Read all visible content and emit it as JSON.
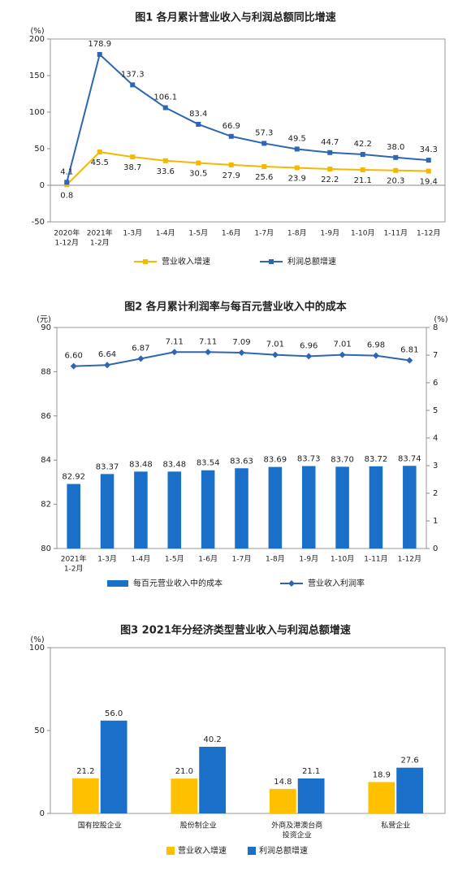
{
  "chart_data": [
    {
      "type": "line",
      "title": "图1 各月累计营业收入与利润总额同比增速",
      "ylabel": "(%)",
      "categories": [
        [
          "2020年",
          "1-12月"
        ],
        [
          "2021年",
          "1-2月"
        ],
        "1-3月",
        "1-4月",
        "1-5月",
        "1-6月",
        "1-7月",
        "1-8月",
        "1-9月",
        "1-10月",
        "1-11月",
        "1-12月"
      ],
      "ylim": [
        -50,
        200
      ],
      "yticks": [
        -50,
        0,
        50,
        100,
        150,
        200
      ],
      "series": [
        {
          "name": "营业收入增速",
          "color": "#f5b800",
          "marker": "square",
          "values": [
            0.8,
            45.5,
            38.7,
            33.6,
            30.5,
            27.9,
            25.6,
            23.9,
            22.2,
            21.1,
            20.3,
            19.4
          ],
          "value_labels": [
            "0.8",
            "45.5",
            "38.7",
            "33.6",
            "30.5",
            "27.9",
            "25.6",
            "23.9",
            "22.2",
            "21.1",
            "20.3",
            "19.4"
          ]
        },
        {
          "name": "利润总额增速",
          "color": "#2f66b3",
          "marker": "square",
          "values": [
            4.1,
            178.9,
            137.3,
            106.1,
            83.4,
            66.9,
            57.3,
            49.5,
            44.7,
            42.2,
            38.0,
            34.3
          ],
          "value_labels": [
            "4.1",
            "178.9",
            "137.3",
            "106.1",
            "83.4",
            "66.9",
            "57.3",
            "49.5",
            "44.7",
            "42.2",
            "38.0",
            "34.3"
          ]
        }
      ]
    },
    {
      "type": "combo",
      "title": "图2 各月累计利润率与每百元营业收入中的成本",
      "ylabel": "(元)",
      "y2label": "(%)",
      "categories": [
        [
          "2021年",
          "1-2月"
        ],
        "1-3月",
        "1-4月",
        "1-5月",
        "1-6月",
        "1-7月",
        "1-8月",
        "1-9月",
        "1-10月",
        "1-11月",
        "1-12月"
      ],
      "ylim": [
        80,
        90
      ],
      "yticks": [
        80,
        82,
        84,
        86,
        88,
        90
      ],
      "y2lim": [
        0,
        8
      ],
      "y2ticks": [
        0,
        1,
        2,
        3,
        4,
        5,
        6,
        7,
        8
      ],
      "series": [
        {
          "name": "每百元营业收入中的成本",
          "type": "bar",
          "color": "#1a6fc9",
          "values": [
            82.92,
            83.37,
            83.48,
            83.48,
            83.54,
            83.63,
            83.69,
            83.73,
            83.7,
            83.72,
            83.74
          ],
          "value_labels": [
            "82.92",
            "83.37",
            "83.48",
            "83.48",
            "83.54",
            "83.63",
            "83.69",
            "83.73",
            "83.70",
            "83.72",
            "83.74"
          ]
        },
        {
          "name": "营业收入利润率",
          "type": "line",
          "axis": "y2",
          "color": "#2f66b3",
          "marker": "diamond",
          "values": [
            6.6,
            6.64,
            6.87,
            7.11,
            7.11,
            7.09,
            7.01,
            6.96,
            7.01,
            6.98,
            6.81
          ],
          "value_labels": [
            "6.60",
            "6.64",
            "6.87",
            "7.11",
            "7.11",
            "7.09",
            "7.01",
            "6.96",
            "7.01",
            "6.98",
            "6.81"
          ]
        }
      ]
    },
    {
      "type": "bar",
      "title": "图3 2021年分经济类型营业收入与利润总额增速",
      "ylabel": "(%)",
      "categories": [
        "国有控股企业",
        "股份制企业",
        [
          "外商及港澳台商",
          "投资企业"
        ],
        "私营企业"
      ],
      "ylim": [
        0,
        100
      ],
      "yticks": [
        0,
        50,
        100
      ],
      "series": [
        {
          "name": "营业收入增速",
          "color": "#ffc000",
          "values": [
            21.2,
            21.0,
            14.8,
            18.9
          ],
          "value_labels": [
            "21.2",
            "21.0",
            "14.8",
            "18.9"
          ]
        },
        {
          "name": "利润总额增速",
          "color": "#1a6fc9",
          "values": [
            56.0,
            40.2,
            21.1,
            27.6
          ],
          "value_labels": [
            "56.0",
            "40.2",
            "21.1",
            "27.6"
          ]
        }
      ]
    }
  ]
}
